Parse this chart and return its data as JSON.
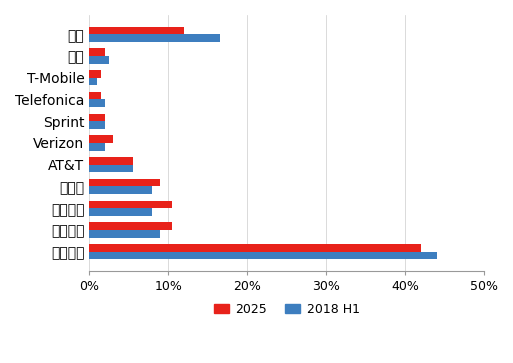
{
  "categories": [
    "中国移动",
    "中国联通",
    "中国电信",
    "沃达丰",
    "AT&T",
    "Verizon",
    "Sprint",
    "Telefonica",
    "T-Mobile",
    "德电",
    "其他"
  ],
  "values_2025": [
    0.42,
    0.105,
    0.105,
    0.09,
    0.055,
    0.03,
    0.02,
    0.015,
    0.015,
    0.02,
    0.12
  ],
  "values_2018h1": [
    0.44,
    0.09,
    0.08,
    0.08,
    0.055,
    0.02,
    0.02,
    0.02,
    0.01,
    0.025,
    0.165
  ],
  "color_2025": "#e8221a",
  "color_2018h1": "#3d7ebf",
  "xlim": [
    0,
    0.5
  ],
  "xtick_labels": [
    "0%",
    "10%",
    "20%",
    "30%",
    "40%",
    "50%"
  ],
  "xtick_values": [
    0,
    0.1,
    0.2,
    0.3,
    0.4,
    0.5
  ],
  "legend_2025": "2025",
  "legend_2018h1": "2018 H1",
  "bar_height": 0.35,
  "figsize": [
    5.13,
    3.63
  ],
  "dpi": 100
}
